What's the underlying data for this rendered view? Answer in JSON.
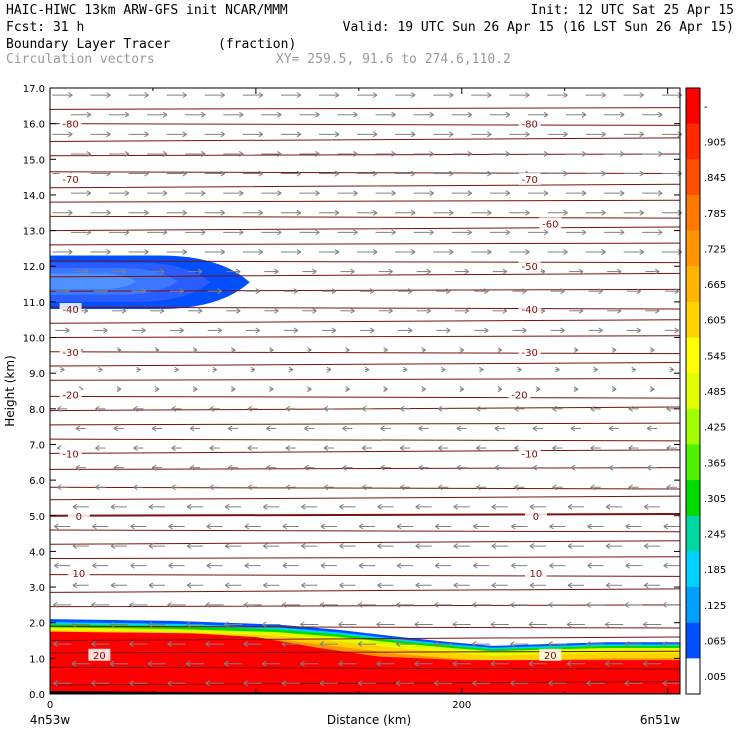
{
  "header": {
    "line1_left": "HAIC-HIWC 13km ARW-GFS init   NCAR/MMM",
    "line1_right": "Init: 12 UTC Sat 25 Apr 15",
    "line2_left": "Fcst:   31 h",
    "line2_right": "Valid: 19 UTC Sun 26 Apr 15 (16 LST Sun 26 Apr 15)",
    "line3_field": "Boundary Layer Tracer",
    "line3_units": "(fraction)",
    "line4_field": "Circulation vectors",
    "line4_xy": "XY= 259.5, 91.6 to 274.6,110.2"
  },
  "chart_data": {
    "type": "heatmap",
    "title": "Boundary Layer Tracer",
    "xlabel": "Distance (km)",
    "ylabel": "Height (km)",
    "xlim": [
      0,
      306
    ],
    "ylim": [
      0,
      17
    ],
    "x_ticks": [
      0,
      200
    ],
    "x_tick_labels": [
      "0",
      "200"
    ],
    "x_end_labels": [
      "4n53w",
      "6n51w"
    ],
    "y_ticks": [
      0,
      1,
      2,
      3,
      4,
      5,
      6,
      7,
      8,
      9,
      10,
      11,
      12,
      13,
      14,
      15,
      16,
      17
    ],
    "y_tick_labels": [
      "0.0",
      "1.0",
      "2.0",
      "3.0",
      "4.0",
      "5.0",
      "6.0",
      "7.0",
      "8.0",
      "9.0",
      "10.0",
      "11.0",
      "12.0",
      "13.0",
      "14.0",
      "15.0",
      "16.0",
      "17.0"
    ],
    "colorbar_ticks": [
      "-",
      ".905",
      ".845",
      ".785",
      ".725",
      ".665",
      ".605",
      ".545",
      ".485",
      ".425",
      ".365",
      ".305",
      ".245",
      ".185",
      ".125",
      ".065",
      ".005"
    ],
    "colorbar_colors": [
      "#ff0000",
      "#ff2800",
      "#ff5000",
      "#ff7800",
      "#ff9600",
      "#ffb400",
      "#ffd200",
      "#ffff00",
      "#e1ff00",
      "#a0ff00",
      "#50f000",
      "#00dc00",
      "#00d7a0",
      "#00d2ff",
      "#00a0ff",
      "#0050ff",
      "#ffffff"
    ],
    "contour_labels": [
      {
        "x": 10,
        "y": 16.0,
        "text": "-80"
      },
      {
        "x": 233,
        "y": 16.0,
        "text": "-80"
      },
      {
        "x": 10,
        "y": 14.45,
        "text": "-70"
      },
      {
        "x": 233,
        "y": 14.45,
        "text": "-70"
      },
      {
        "x": 243,
        "y": 13.2,
        "text": "-60"
      },
      {
        "x": 233,
        "y": 12.0,
        "text": "-50"
      },
      {
        "x": 10,
        "y": 10.8,
        "text": "-40"
      },
      {
        "x": 233,
        "y": 10.8,
        "text": "-40"
      },
      {
        "x": 10,
        "y": 9.6,
        "text": "-30"
      },
      {
        "x": 233,
        "y": 9.6,
        "text": "-30"
      },
      {
        "x": 10,
        "y": 8.4,
        "text": "-20"
      },
      {
        "x": 228,
        "y": 8.4,
        "text": "-20"
      },
      {
        "x": 10,
        "y": 6.75,
        "text": "-10"
      },
      {
        "x": 233,
        "y": 6.75,
        "text": "-10"
      },
      {
        "x": 14,
        "y": 5.0,
        "text": "0"
      },
      {
        "x": 236,
        "y": 5.0,
        "text": "0"
      },
      {
        "x": 14,
        "y": 3.4,
        "text": "10"
      },
      {
        "x": 236,
        "y": 3.4,
        "text": "10"
      },
      {
        "x": 24,
        "y": 1.1,
        "text": "20"
      },
      {
        "x": 243,
        "y": 1.1,
        "text": "20"
      }
    ],
    "background_color": "#ffffff",
    "vector_color": "#808080",
    "contour_color": "#7a1010"
  }
}
